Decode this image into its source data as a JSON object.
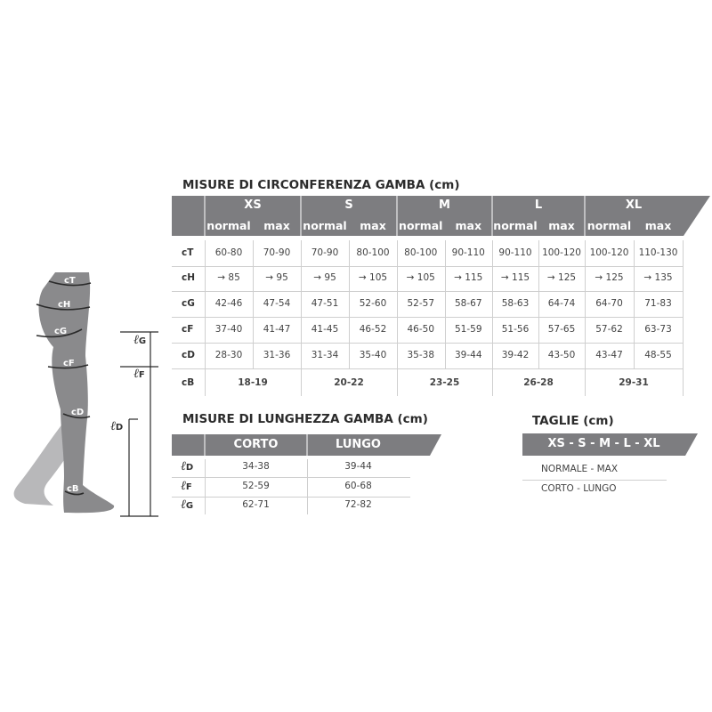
{
  "circumference": {
    "title": "MISURE DI CIRCONFERENZA GAMBA (cm)",
    "sizes": [
      "XS",
      "S",
      "M",
      "L",
      "XL"
    ],
    "sub": [
      "normal",
      "max"
    ],
    "rows": [
      {
        "label": "cT",
        "values": [
          "60-80",
          "70-90",
          "70-90",
          "80-100",
          "80-100",
          "90-110",
          "90-110",
          "100-120",
          "100-120",
          "110-130"
        ]
      },
      {
        "label": "cH",
        "values": [
          "→ 85",
          "→ 95",
          "→ 95",
          "→ 105",
          "→ 105",
          "→ 115",
          "→ 115",
          "→ 125",
          "→ 125",
          "→ 135"
        ]
      },
      {
        "label": "cG",
        "values": [
          "42-46",
          "47-54",
          "47-51",
          "52-60",
          "52-57",
          "58-67",
          "58-63",
          "64-74",
          "64-70",
          "71-83"
        ]
      },
      {
        "label": "cF",
        "values": [
          "37-40",
          "41-47",
          "41-45",
          "46-52",
          "46-50",
          "51-59",
          "51-56",
          "57-65",
          "57-62",
          "63-73"
        ]
      },
      {
        "label": "cD",
        "values": [
          "28-30",
          "31-36",
          "31-34",
          "35-40",
          "35-38",
          "39-44",
          "39-42",
          "43-50",
          "43-47",
          "48-55"
        ]
      }
    ],
    "cB": {
      "label": "cB",
      "values": [
        "18-19",
        "20-22",
        "23-25",
        "26-28",
        "29-31"
      ]
    }
  },
  "length": {
    "title": "MISURE DI LUNGHEZZA GAMBA (cm)",
    "headers": [
      "CORTO",
      "LUNGO"
    ],
    "rows": [
      {
        "label": "ℓ",
        "sub": "D",
        "values": [
          "34-38",
          "39-44"
        ]
      },
      {
        "label": "ℓ",
        "sub": "F",
        "values": [
          "52-59",
          "60-68"
        ]
      },
      {
        "label": "ℓ",
        "sub": "G",
        "values": [
          "62-71",
          "72-82"
        ]
      }
    ]
  },
  "sizes": {
    "title": "TAGLIE (cm)",
    "header": "XS - S - M - L - XL",
    "rows": [
      "NORMALE - MAX",
      "CORTO - LUNGO"
    ]
  },
  "figure": {
    "circ_labels": [
      "cT",
      "cH",
      "cG",
      "cF",
      "cD",
      "cB"
    ],
    "length_labels": [
      {
        "l": "ℓ",
        "s": "G"
      },
      {
        "l": "ℓ",
        "s": "F"
      },
      {
        "l": "ℓ",
        "s": "D"
      }
    ]
  },
  "colors": {
    "band": "#7d7d80",
    "leg": "#8a8a8c",
    "leg_back": "#b8b8ba"
  }
}
